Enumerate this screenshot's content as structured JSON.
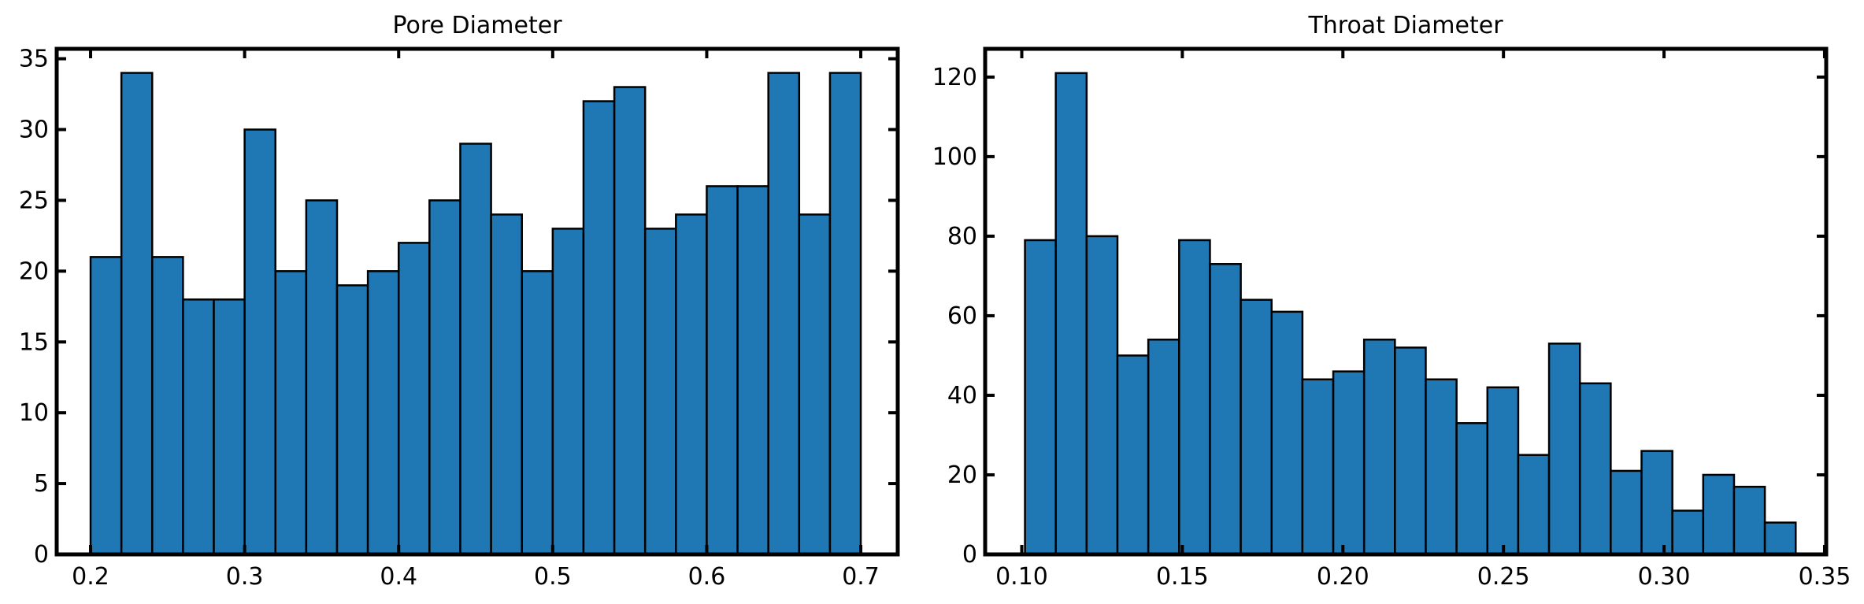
{
  "chart_data": [
    {
      "type": "bar",
      "title": "Pore Diameter",
      "xlabel": "",
      "ylabel": "",
      "xlim": [
        0.178,
        0.724
      ],
      "ylim": [
        0,
        35.7
      ],
      "bin_start": 0.2,
      "bin_width": 0.02,
      "values": [
        21,
        34,
        21,
        18,
        18,
        30,
        20,
        25,
        19,
        20,
        22,
        25,
        29,
        24,
        20,
        23,
        32,
        33,
        23,
        24,
        26,
        26,
        34,
        24,
        34
      ],
      "x_ticks": [
        0.2,
        0.3,
        0.4,
        0.5,
        0.6,
        0.7
      ],
      "x_tick_labels": [
        "0.2",
        "0.3",
        "0.4",
        "0.5",
        "0.6",
        "0.7"
      ],
      "y_ticks": [
        0,
        5,
        10,
        15,
        20,
        25,
        30,
        35
      ],
      "y_tick_labels": [
        "0",
        "5",
        "10",
        "15",
        "20",
        "25",
        "30",
        "35"
      ],
      "bar_color": "#1f77b4",
      "edge_color": "#000000",
      "grid": false,
      "legend": "none"
    },
    {
      "type": "bar",
      "title": "Throat Diameter",
      "xlabel": "",
      "ylabel": "",
      "xlim": [
        0.0886,
        0.3505
      ],
      "ylim": [
        0,
        127.1
      ],
      "bin_start": 0.101,
      "bin_width": 0.0096,
      "values": [
        79,
        121,
        80,
        50,
        54,
        79,
        73,
        64,
        61,
        44,
        46,
        54,
        52,
        44,
        33,
        42,
        25,
        53,
        43,
        21,
        26,
        11,
        20,
        17,
        8
      ],
      "x_ticks": [
        0.1,
        0.15,
        0.2,
        0.25,
        0.3,
        0.35
      ],
      "x_tick_labels": [
        "0.10",
        "0.15",
        "0.20",
        "0.25",
        "0.30",
        "0.35"
      ],
      "y_ticks": [
        0,
        20,
        40,
        60,
        80,
        100,
        120
      ],
      "y_tick_labels": [
        "0",
        "20",
        "40",
        "60",
        "80",
        "100",
        "120"
      ],
      "bar_color": "#1f77b4",
      "edge_color": "#000000",
      "grid": false,
      "legend": "none"
    }
  ]
}
